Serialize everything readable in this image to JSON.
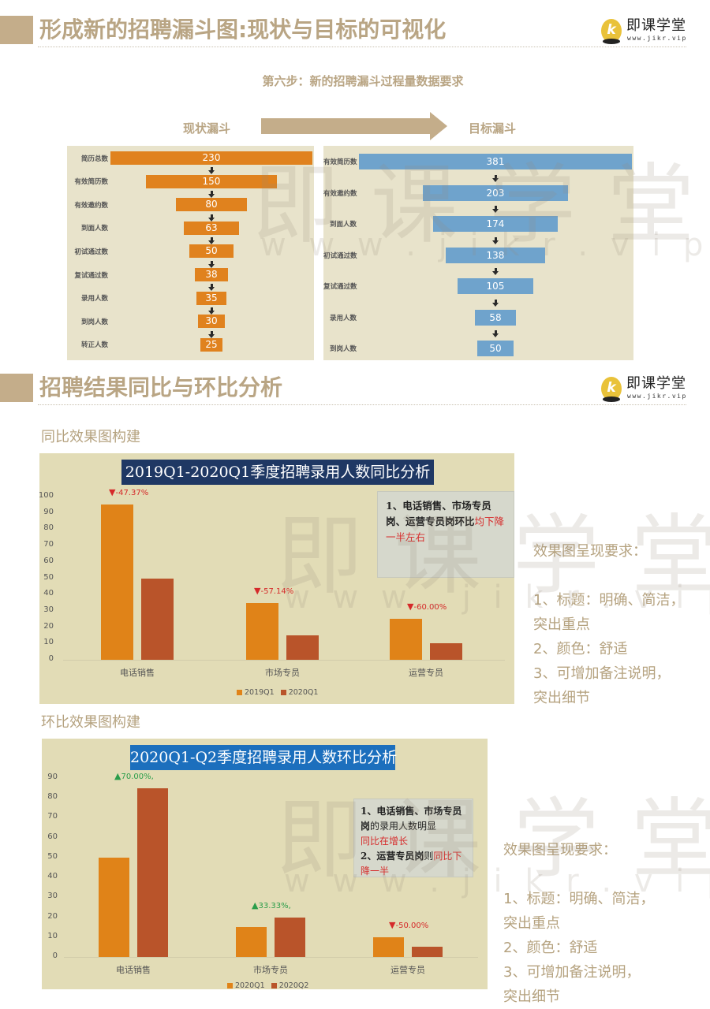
{
  "section1": {
    "title": "形成新的招聘漏斗图:现状与目标的可视化",
    "logo": {
      "name": "即课学堂",
      "url": "www.jikr.vip",
      "mark": "k"
    },
    "subtitle": "第六步：新的招聘漏斗过程量数据要求",
    "current_label": "现状漏斗",
    "target_label": "目标漏斗"
  },
  "section2": {
    "title": "招聘结果同比与环比分析",
    "logo": {
      "name": "即课学堂",
      "url": "www.jikr.vip",
      "mark": "k"
    },
    "yoy_heading": "同比效果图构建",
    "qoq_heading": "环比效果图构建"
  },
  "watermark": {
    "text": "即课学堂",
    "url": "w w w . j i k r . v i p"
  },
  "yoy_notes": {
    "line1_bold": "1、电话销售、市场专员岗、运营专员岗环比",
    "line1_red": "均下降一半左右"
  },
  "qoq_notes": {
    "p1_bold": "1、电话销售、市场专员岗",
    "p1_plain": "的录用人数明显",
    "p1_red": "同比在增长",
    "p2_bold": "2、运营专员岗",
    "p2_plain": "则",
    "p2_red": "同比下降一半"
  },
  "requirements": {
    "heading": "效果图呈现要求：",
    "items": [
      "1、标题：明确、简洁，",
      "突出重点",
      "2、颜色：舒适",
      "3、可增加备注说明，",
      "突出细节"
    ]
  },
  "chart_data": [
    {
      "type": "funnel",
      "title": "现状漏斗",
      "categories": [
        "简历总数",
        "有效简历数",
        "有效邀约数",
        "到面人数",
        "初试通过数",
        "复试通过数",
        "录用人数",
        "到岗人数",
        "转正人数"
      ],
      "values": [
        230,
        150,
        80,
        63,
        50,
        38,
        35,
        30,
        25
      ],
      "color": "#e0821e"
    },
    {
      "type": "funnel",
      "title": "目标漏斗",
      "categories": [
        "有效简历数",
        "有效邀约数",
        "到面人数",
        "初试通过数",
        "复试通过数",
        "录用人数",
        "到岗人数"
      ],
      "values": [
        381,
        203,
        174,
        138,
        105,
        58,
        50
      ],
      "color": "#6fa3cc"
    },
    {
      "type": "bar",
      "title": "2019Q1-2020Q1季度招聘录用人数同比分析",
      "categories": [
        "电话销售",
        "市场专员",
        "运营专员"
      ],
      "series": [
        {
          "name": "2019Q1",
          "values": [
            95,
            35,
            25
          ],
          "color": "#e08318"
        },
        {
          "name": "2020Q1",
          "values": [
            50,
            15,
            10
          ],
          "color": "#b9542a"
        }
      ],
      "annotations": [
        "-47.37%",
        "-57.14%",
        "-60.00%"
      ],
      "annotation_direction": [
        "down",
        "down",
        "down"
      ],
      "yticks": [
        0,
        10,
        20,
        30,
        40,
        50,
        60,
        70,
        80,
        90,
        100
      ],
      "ylim": [
        0,
        100
      ],
      "xlabel": "",
      "ylabel": "",
      "legend_position": "bottom"
    },
    {
      "type": "bar",
      "title": "2020Q1-Q2季度招聘录用人数环比分析",
      "categories": [
        "电话销售",
        "市场专员",
        "运营专员"
      ],
      "series": [
        {
          "name": "2020Q1",
          "values": [
            50,
            15,
            10
          ],
          "color": "#e08318"
        },
        {
          "name": "2020Q2",
          "values": [
            85,
            20,
            5
          ],
          "color": "#b9542a"
        }
      ],
      "annotations": [
        "70.00%,",
        "33.33%,",
        "-50.00%"
      ],
      "annotation_direction": [
        "up",
        "up",
        "down"
      ],
      "yticks": [
        0,
        10,
        20,
        30,
        40,
        50,
        60,
        70,
        80,
        90
      ],
      "ylim": [
        0,
        90
      ],
      "xlabel": "",
      "ylabel": "",
      "legend_position": "bottom"
    }
  ]
}
